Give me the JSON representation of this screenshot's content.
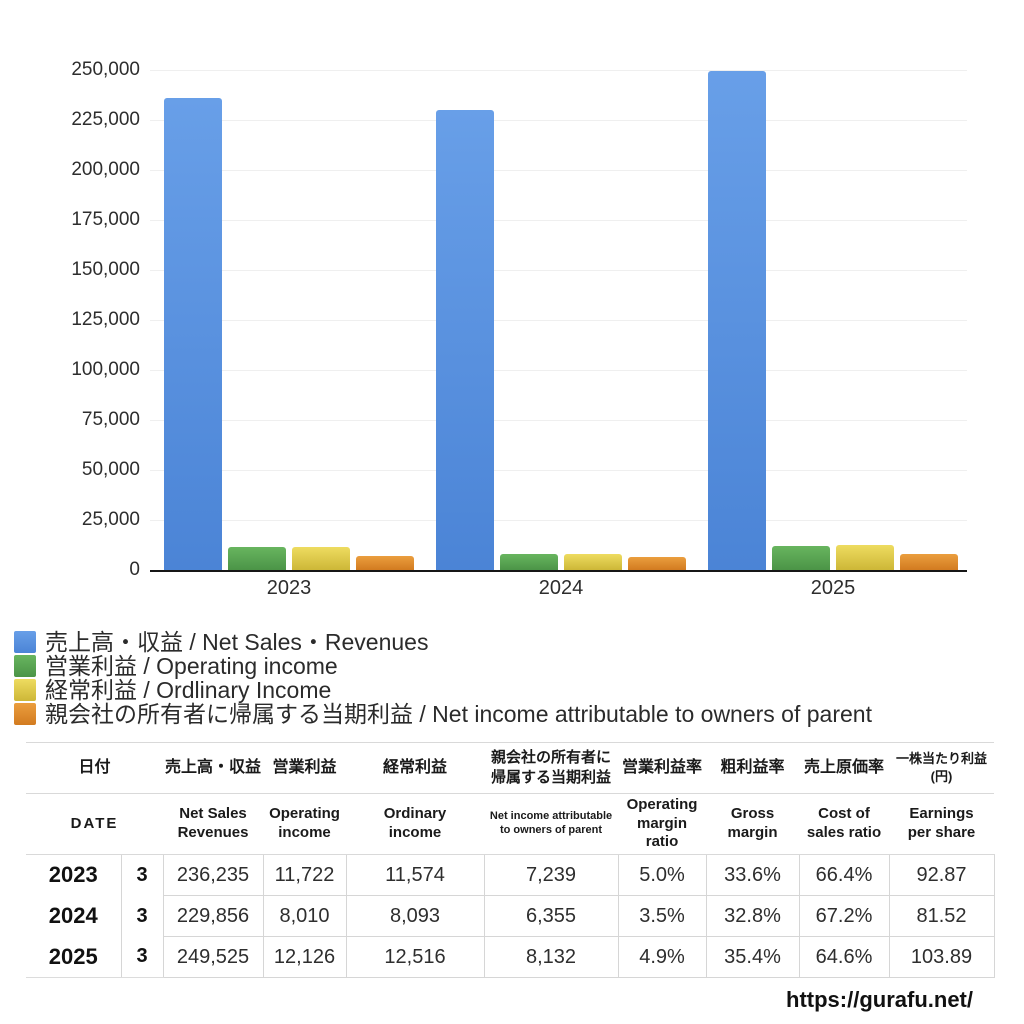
{
  "chart_data": {
    "type": "bar",
    "title": "",
    "categories": [
      "2023",
      "2024",
      "2025"
    ],
    "series": [
      {
        "key": "net-sales",
        "name": "売上高・収益 / Net Sales・Revenues",
        "color_top": "#689fe8",
        "color_bottom": "#4b84d6",
        "values": [
          236235,
          229856,
          249525
        ]
      },
      {
        "key": "operating-income",
        "name": "営業利益 / Operating income",
        "color_top": "#68b55f",
        "color_bottom": "#4b9447",
        "values": [
          11722,
          8010,
          12126
        ]
      },
      {
        "key": "ordinary-income",
        "name": "経常利益 / Ordlinary Income",
        "color_top": "#eedc60",
        "color_bottom": "#cdb737",
        "values": [
          11574,
          8093,
          12516
        ]
      },
      {
        "key": "net-income-parent",
        "name": "親会社の所有者に帰属する当期利益 / Net income attributable to owners of parent",
        "color_top": "#eb9e3e",
        "color_bottom": "#d27b20",
        "values": [
          7239,
          6355,
          8132
        ]
      }
    ],
    "xlabel": "",
    "ylabel": "",
    "ylim": [
      0,
      250000
    ],
    "ytick_step": 25000,
    "grid": true,
    "legend_position": "bottom-left"
  },
  "table": {
    "header_ja": [
      "日付",
      "売上高・収益",
      "営業利益",
      "経常利益",
      "親会社の所有者に\n帰属する当期利益",
      "営業利益率",
      "粗利益率",
      "売上原価率",
      "一株当たり利益\n(円)"
    ],
    "header_en": [
      "DATE",
      "Net Sales\nRevenues",
      "Operating\nincome",
      "Ordinary\nincome",
      "Net income attributable\nto owners of parent",
      "Operating\nmargin\nratio",
      "Gross\nmargin",
      "Cost of\nsales ratio",
      "Earnings\nper share"
    ],
    "rows": [
      {
        "year": "2023",
        "month": "3",
        "values": [
          "236,235",
          "11,722",
          "11,574",
          "7,239",
          "5.0%",
          "33.6%",
          "66.4%",
          "92.87"
        ]
      },
      {
        "year": "2024",
        "month": "3",
        "values": [
          "229,856",
          "8,010",
          "8,093",
          "6,355",
          "3.5%",
          "32.8%",
          "67.2%",
          "81.52"
        ]
      },
      {
        "year": "2025",
        "month": "3",
        "values": [
          "249,525",
          "12,126",
          "12,516",
          "8,132",
          "4.9%",
          "35.4%",
          "64.6%",
          "103.89"
        ]
      }
    ]
  },
  "footer": {
    "url": "https://gurafu.net/"
  }
}
